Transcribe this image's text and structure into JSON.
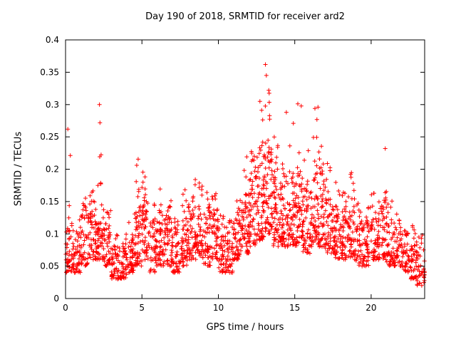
{
  "chart_data": {
    "type": "scatter",
    "title": "Day 190 of 2018, SRMTID for receiver ard2",
    "xlabel": "GPS time / hours",
    "ylabel": "SRMTID / TECUs",
    "xlim": [
      0,
      23.5
    ],
    "ylim": [
      0,
      0.4
    ],
    "xticks": [
      0,
      5,
      10,
      15,
      20
    ],
    "xtick_labels": [
      "0",
      "5",
      "10",
      "15",
      "20"
    ],
    "yticks": [
      0,
      0.05,
      0.1,
      0.15,
      0.2,
      0.25,
      0.3,
      0.35,
      0.4
    ],
    "ytick_labels": [
      "0",
      "0.05",
      "0.1",
      "0.15",
      "0.2",
      "0.25",
      "0.3",
      "0.35",
      "0.4"
    ],
    "grid": false,
    "legend": "none",
    "marker": "plus",
    "marker_color": "#ff0000",
    "border_color": "#000000",
    "bin_width": 0.5,
    "bin_format": [
      "x_start",
      "count",
      "y_low",
      "y_high",
      "y_peak"
    ],
    "bins": [
      [
        0.0,
        45,
        0.04,
        0.11,
        0.26
      ],
      [
        0.5,
        40,
        0.04,
        0.1,
        0.13
      ],
      [
        1.0,
        45,
        0.05,
        0.14,
        0.16
      ],
      [
        1.5,
        45,
        0.06,
        0.15,
        0.17
      ],
      [
        2.0,
        50,
        0.06,
        0.15,
        0.3
      ],
      [
        2.5,
        40,
        0.05,
        0.12,
        0.14
      ],
      [
        3.0,
        45,
        0.03,
        0.08,
        0.1
      ],
      [
        3.5,
        45,
        0.03,
        0.08,
        0.1
      ],
      [
        4.0,
        40,
        0.04,
        0.09,
        0.12
      ],
      [
        4.5,
        50,
        0.05,
        0.15,
        0.22
      ],
      [
        5.0,
        50,
        0.06,
        0.16,
        0.21
      ],
      [
        5.5,
        40,
        0.04,
        0.12,
        0.15
      ],
      [
        6.0,
        45,
        0.05,
        0.13,
        0.19
      ],
      [
        6.5,
        45,
        0.05,
        0.13,
        0.16
      ],
      [
        7.0,
        40,
        0.04,
        0.11,
        0.14
      ],
      [
        7.5,
        45,
        0.05,
        0.13,
        0.17
      ],
      [
        8.0,
        45,
        0.06,
        0.15,
        0.19
      ],
      [
        8.5,
        45,
        0.06,
        0.15,
        0.19
      ],
      [
        9.0,
        45,
        0.05,
        0.14,
        0.17
      ],
      [
        9.5,
        45,
        0.06,
        0.14,
        0.17
      ],
      [
        10.0,
        40,
        0.04,
        0.11,
        0.13
      ],
      [
        10.5,
        40,
        0.04,
        0.11,
        0.13
      ],
      [
        11.0,
        45,
        0.06,
        0.13,
        0.16
      ],
      [
        11.5,
        50,
        0.07,
        0.16,
        0.22
      ],
      [
        12.0,
        55,
        0.08,
        0.2,
        0.24
      ],
      [
        12.5,
        55,
        0.09,
        0.22,
        0.3
      ],
      [
        13.0,
        55,
        0.1,
        0.24,
        0.36
      ],
      [
        13.5,
        50,
        0.08,
        0.2,
        0.28
      ],
      [
        14.0,
        50,
        0.08,
        0.18,
        0.25
      ],
      [
        14.5,
        50,
        0.08,
        0.18,
        0.29
      ],
      [
        15.0,
        50,
        0.08,
        0.19,
        0.3
      ],
      [
        15.5,
        45,
        0.07,
        0.17,
        0.24
      ],
      [
        16.0,
        50,
        0.08,
        0.2,
        0.3
      ],
      [
        16.5,
        50,
        0.08,
        0.2,
        0.26
      ],
      [
        17.0,
        45,
        0.07,
        0.16,
        0.21
      ],
      [
        17.5,
        45,
        0.06,
        0.14,
        0.19
      ],
      [
        18.0,
        45,
        0.06,
        0.14,
        0.18
      ],
      [
        18.5,
        45,
        0.06,
        0.16,
        0.22
      ],
      [
        19.0,
        40,
        0.05,
        0.12,
        0.15
      ],
      [
        19.5,
        40,
        0.05,
        0.12,
        0.15
      ],
      [
        20.0,
        45,
        0.06,
        0.13,
        0.17
      ],
      [
        20.5,
        45,
        0.06,
        0.15,
        0.23
      ],
      [
        21.0,
        40,
        0.05,
        0.12,
        0.16
      ],
      [
        21.5,
        40,
        0.05,
        0.11,
        0.14
      ],
      [
        22.0,
        40,
        0.04,
        0.1,
        0.12
      ],
      [
        22.5,
        40,
        0.03,
        0.09,
        0.12
      ],
      [
        23.0,
        35,
        0.02,
        0.08,
        0.11
      ]
    ],
    "notable_points": [
      {
        "x": 13.08,
        "y": 0.362
      },
      {
        "x": 13.14,
        "y": 0.345
      },
      {
        "x": 13.3,
        "y": 0.322
      },
      {
        "x": 12.72,
        "y": 0.305
      },
      {
        "x": 2.22,
        "y": 0.3
      },
      {
        "x": 2.25,
        "y": 0.272
      },
      {
        "x": 15.2,
        "y": 0.301
      },
      {
        "x": 16.52,
        "y": 0.296
      },
      {
        "x": 14.45,
        "y": 0.288
      },
      {
        "x": 0.15,
        "y": 0.262
      },
      {
        "x": 20.92,
        "y": 0.232
      }
    ]
  }
}
